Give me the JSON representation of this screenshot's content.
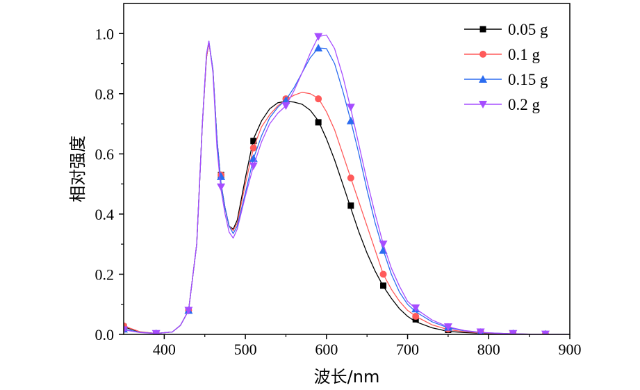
{
  "chart_data": {
    "type": "line",
    "xlabel": "波长/nm",
    "ylabel": "相对强度",
    "xlim": [
      350,
      900
    ],
    "ylim": [
      0,
      1.1
    ],
    "x_ticks": [
      400,
      500,
      600,
      700,
      800,
      900
    ],
    "y_ticks": [
      0.0,
      0.2,
      0.4,
      0.6,
      0.8,
      1.0
    ],
    "y_tick_labels": [
      "0.0",
      "0.2",
      "0.4",
      "0.6",
      "0.8",
      "1.0"
    ],
    "legend_position": "top-right",
    "series": [
      {
        "name": "0.05 g",
        "color": "#000000",
        "marker": "square",
        "curve_x": [
          350,
          370,
          390,
          410,
          420,
          430,
          440,
          447,
          452,
          455,
          460,
          465,
          470,
          475,
          480,
          485,
          490,
          500,
          510,
          520,
          530,
          540,
          550,
          560,
          570,
          580,
          590,
          600,
          610,
          620,
          630,
          640,
          650,
          660,
          670,
          680,
          690,
          700,
          710,
          730,
          750,
          770,
          790,
          810,
          830,
          850,
          870,
          900
        ],
        "curve_y": [
          0.025,
          0.008,
          0.003,
          0.008,
          0.03,
          0.08,
          0.3,
          0.7,
          0.92,
          0.97,
          0.88,
          0.65,
          0.5,
          0.42,
          0.36,
          0.35,
          0.38,
          0.52,
          0.65,
          0.71,
          0.75,
          0.77,
          0.775,
          0.772,
          0.765,
          0.745,
          0.71,
          0.65,
          0.58,
          0.5,
          0.42,
          0.34,
          0.27,
          0.21,
          0.16,
          0.12,
          0.085,
          0.06,
          0.042,
          0.022,
          0.01,
          0.006,
          0.004,
          0.002,
          0.001,
          0.001,
          0.0,
          0.0
        ],
        "marker_x": [
          350,
          390,
          430,
          470,
          510,
          550,
          590,
          630,
          670,
          710,
          750,
          790,
          830,
          870
        ],
        "marker_y": [
          0.025,
          0.003,
          0.08,
          0.53,
          0.643,
          0.78,
          0.705,
          0.428,
          0.162,
          0.05,
          0.015,
          0.005,
          0.002,
          0.001
        ]
      },
      {
        "name": "0.1 g",
        "color": "#ff5a5a",
        "marker": "circle",
        "curve_x": [
          350,
          370,
          390,
          410,
          420,
          430,
          440,
          447,
          452,
          455,
          460,
          465,
          470,
          475,
          480,
          485,
          490,
          500,
          510,
          520,
          530,
          540,
          550,
          560,
          570,
          580,
          590,
          600,
          610,
          620,
          630,
          640,
          650,
          660,
          670,
          680,
          690,
          700,
          710,
          730,
          750,
          770,
          790,
          810,
          830,
          850,
          870,
          900
        ],
        "curve_y": [
          0.028,
          0.009,
          0.003,
          0.008,
          0.03,
          0.08,
          0.3,
          0.7,
          0.92,
          0.97,
          0.88,
          0.65,
          0.5,
          0.42,
          0.36,
          0.345,
          0.37,
          0.5,
          0.62,
          0.69,
          0.73,
          0.76,
          0.78,
          0.795,
          0.805,
          0.8,
          0.785,
          0.74,
          0.68,
          0.6,
          0.52,
          0.44,
          0.36,
          0.28,
          0.2,
          0.15,
          0.11,
          0.08,
          0.06,
          0.032,
          0.016,
          0.009,
          0.005,
          0.003,
          0.002,
          0.001,
          0.001,
          0.0
        ],
        "marker_x": [
          350,
          390,
          430,
          470,
          510,
          550,
          590,
          630,
          670,
          710,
          750,
          790,
          830,
          870
        ],
        "marker_y": [
          0.028,
          0.003,
          0.08,
          0.53,
          0.62,
          0.783,
          0.783,
          0.52,
          0.2,
          0.06,
          0.018,
          0.006,
          0.002,
          0.001
        ]
      },
      {
        "name": "0.15 g",
        "color": "#2b6cf0",
        "marker": "triangle-up",
        "curve_x": [
          350,
          370,
          390,
          410,
          420,
          430,
          440,
          447,
          452,
          455,
          460,
          465,
          470,
          475,
          480,
          485,
          490,
          500,
          510,
          520,
          530,
          540,
          550,
          560,
          570,
          580,
          590,
          600,
          610,
          620,
          630,
          640,
          650,
          660,
          670,
          680,
          690,
          700,
          710,
          730,
          750,
          770,
          790,
          810,
          830,
          850,
          870,
          900
        ],
        "curve_y": [
          0.018,
          0.007,
          0.003,
          0.008,
          0.03,
          0.08,
          0.3,
          0.7,
          0.93,
          0.975,
          0.88,
          0.65,
          0.5,
          0.42,
          0.36,
          0.335,
          0.36,
          0.47,
          0.585,
          0.66,
          0.72,
          0.755,
          0.78,
          0.82,
          0.87,
          0.92,
          0.952,
          0.95,
          0.9,
          0.81,
          0.71,
          0.6,
          0.48,
          0.37,
          0.28,
          0.2,
          0.14,
          0.1,
          0.075,
          0.042,
          0.022,
          0.012,
          0.006,
          0.004,
          0.002,
          0.001,
          0.001,
          0.0
        ],
        "marker_x": [
          350,
          390,
          430,
          470,
          510,
          550,
          590,
          630,
          670,
          710,
          750,
          790,
          830,
          870
        ],
        "marker_y": [
          0.018,
          0.003,
          0.08,
          0.525,
          0.585,
          0.778,
          0.952,
          0.71,
          0.28,
          0.085,
          0.024,
          0.007,
          0.003,
          0.001
        ]
      },
      {
        "name": "0.2 g",
        "color": "#a64dff",
        "marker": "triangle-down",
        "curve_x": [
          350,
          370,
          390,
          410,
          420,
          430,
          440,
          447,
          452,
          455,
          460,
          465,
          470,
          475,
          480,
          485,
          490,
          500,
          510,
          520,
          530,
          540,
          550,
          560,
          570,
          580,
          590,
          600,
          610,
          620,
          630,
          640,
          650,
          660,
          670,
          680,
          690,
          700,
          710,
          730,
          750,
          770,
          790,
          810,
          830,
          850,
          870,
          900
        ],
        "curve_y": [
          0.015,
          0.006,
          0.003,
          0.008,
          0.03,
          0.08,
          0.3,
          0.7,
          0.93,
          0.975,
          0.87,
          0.62,
          0.48,
          0.4,
          0.34,
          0.32,
          0.35,
          0.46,
          0.56,
          0.64,
          0.7,
          0.735,
          0.76,
          0.81,
          0.87,
          0.935,
          0.99,
          0.995,
          0.95,
          0.86,
          0.75,
          0.63,
          0.51,
          0.4,
          0.3,
          0.22,
          0.16,
          0.11,
          0.085,
          0.048,
          0.025,
          0.013,
          0.007,
          0.004,
          0.002,
          0.001,
          0.001,
          0.0
        ],
        "marker_x": [
          350,
          390,
          430,
          470,
          510,
          550,
          590,
          630,
          670,
          710,
          750,
          790,
          830,
          870
        ],
        "marker_y": [
          0.015,
          0.003,
          0.08,
          0.49,
          0.56,
          0.76,
          0.99,
          0.755,
          0.3,
          0.088,
          0.025,
          0.008,
          0.003,
          0.001
        ]
      }
    ]
  }
}
